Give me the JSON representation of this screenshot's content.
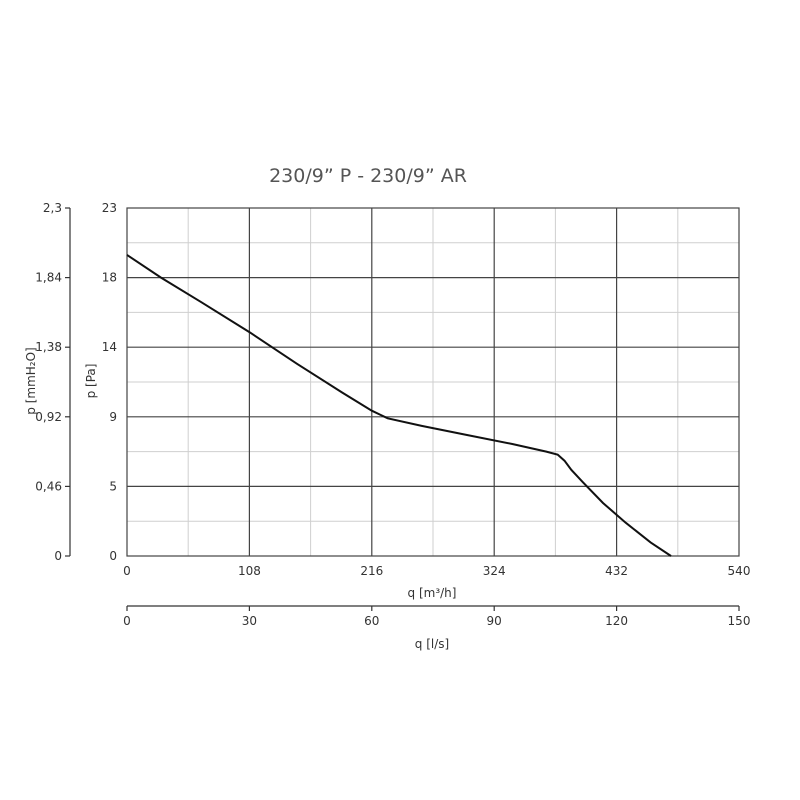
{
  "chart_data": {
    "type": "line",
    "title": "230/9” P - 230/9” AR",
    "xlabel": "q [m³/h]",
    "ylabel": "p [Pa]",
    "x2label": "q [l/s]",
    "y2label": "p [mmH₂O]",
    "xlim": [
      0,
      540
    ],
    "ylim": [
      0,
      23
    ],
    "x2lim": [
      0,
      150
    ],
    "y2lim": [
      0,
      2.3
    ],
    "xticks": [
      "0",
      "108",
      "216",
      "324",
      "432",
      "540"
    ],
    "yticks": [
      "0",
      "5",
      "9",
      "14",
      "18",
      "23"
    ],
    "x2ticks": [
      "0",
      "30",
      "60",
      "90",
      "120",
      "150"
    ],
    "y2ticks": [
      "0",
      "0,46",
      "0,92",
      "1,38",
      "1,84",
      "2,3"
    ],
    "grid": true,
    "series": [
      {
        "x": [
          0,
          30,
          65,
          108,
          150,
          190,
          216,
          230,
          260,
          300,
          340,
          370,
          380,
          386,
          392,
          402,
          420,
          440,
          462,
          480
        ],
        "y": [
          19.9,
          18.4,
          16.8,
          14.8,
          12.7,
          10.8,
          9.6,
          9.1,
          8.6,
          8.0,
          7.4,
          6.9,
          6.7,
          6.3,
          5.7,
          4.9,
          3.5,
          2.2,
          0.9,
          0
        ]
      }
    ]
  }
}
